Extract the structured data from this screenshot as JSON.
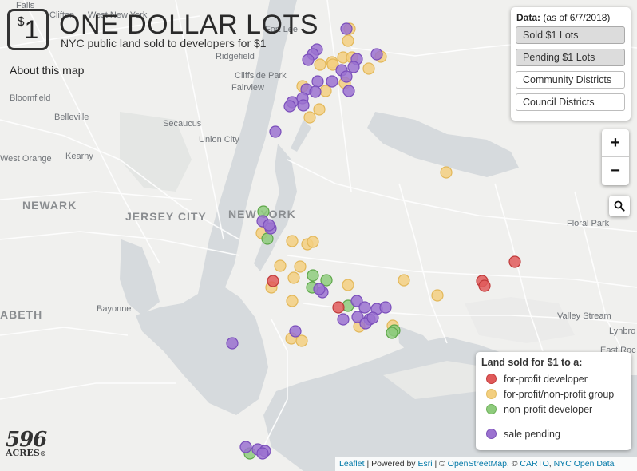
{
  "header": {
    "logo_dollar": "$",
    "logo_number": "1",
    "title": "ONE DOLLAR LOTS",
    "subtitle": "NYC public land sold to developers for $1",
    "about_link": "About this map"
  },
  "data_panel": {
    "heading_bold": "Data:",
    "heading_note": "(as of 6/7/2018)",
    "layers": [
      {
        "label": "Sold $1 Lots",
        "active": true
      },
      {
        "label": "Pending $1 Lots",
        "active": true
      },
      {
        "label": "Community Districts",
        "active": false
      },
      {
        "label": "Council Districts",
        "active": false
      }
    ]
  },
  "zoom": {
    "in_label": "+",
    "out_label": "−"
  },
  "search": {
    "icon": "magnifier-icon"
  },
  "legend": {
    "title": "Land sold for $1 to a:",
    "items": [
      {
        "label": "for-profit developer",
        "category": "for-profit",
        "color": "#e05a5a"
      },
      {
        "label": "for-profit/non-profit group",
        "category": "mixed",
        "color": "#f3cf80"
      },
      {
        "label": "non-profit developer",
        "category": "non-profit",
        "color": "#8ecb7c"
      }
    ],
    "pending": {
      "label": "sale pending",
      "category": "pending",
      "color": "#9b72d0"
    }
  },
  "brand": {
    "number": "596",
    "word": "ACRES",
    "mark": "®"
  },
  "attribution": {
    "leaflet": "Leaflet",
    "sep1": " | Powered by ",
    "esri": "Esri",
    "sep2": " | © ",
    "osm": "OpenStreetMap",
    "sep3": ", © ",
    "carto": "CARTO",
    "sep4": ", ",
    "nycod": "NYC Open Data"
  },
  "map": {
    "labels": {
      "west_new_york": "West New York",
      "fort_lee": "Fort Lee",
      "ridgefield": "Ridgefield",
      "cliffside_park": "Cliffside Park",
      "fairview": "Fairview",
      "bloomfield": "Bloomfield",
      "belleville": "Belleville",
      "secaucus": "Secaucus",
      "union_city": "Union City",
      "west_orange": "West Orange",
      "kearny": "Kearny",
      "newark": "NEWARK",
      "jersey_city": "JERSEY CITY",
      "new_york": "NEW YORK",
      "floral_park": "Floral Park",
      "bayonne": "Bayonne",
      "valley_stream": "Valley Stream",
      "lynbrook": "Lynbro",
      "east_rockaway": "East Roc",
      "elizabeth": "ABETH",
      "clifton": "Clifton",
      "falls": "Falls"
    },
    "lots": {
      "pending": [
        [
          434,
          36
        ],
        [
          397,
          62
        ],
        [
          392,
          68
        ],
        [
          386,
          75
        ],
        [
          447,
          74
        ],
        [
          428,
          88
        ],
        [
          443,
          84
        ],
        [
          416,
          102
        ],
        [
          434,
          96
        ],
        [
          437,
          114
        ],
        [
          398,
          102
        ],
        [
          384,
          112
        ],
        [
          395,
          115
        ],
        [
          379,
          123
        ],
        [
          366,
          128
        ],
        [
          363,
          133
        ],
        [
          380,
          132
        ],
        [
          345,
          165
        ],
        [
          472,
          68
        ],
        [
          329,
          277
        ],
        [
          339,
          286
        ],
        [
          337,
          282
        ],
        [
          404,
          366
        ],
        [
          400,
          362
        ],
        [
          447,
          377
        ],
        [
          457,
          385
        ],
        [
          472,
          387
        ],
        [
          483,
          385
        ],
        [
          448,
          397
        ],
        [
          463,
          400
        ],
        [
          458,
          405
        ],
        [
          467,
          398
        ],
        [
          430,
          400
        ],
        [
          370,
          415
        ],
        [
          291,
          430
        ],
        [
          308,
          560
        ],
        [
          323,
          563
        ],
        [
          332,
          565
        ],
        [
          329,
          568
        ]
      ],
      "mixed": [
        [
          438,
          36
        ],
        [
          436,
          51
        ],
        [
          401,
          81
        ],
        [
          416,
          78
        ],
        [
          430,
          72
        ],
        [
          441,
          72
        ],
        [
          432,
          104
        ],
        [
          462,
          86
        ],
        [
          477,
          71
        ],
        [
          379,
          108
        ],
        [
          408,
          114
        ],
        [
          400,
          137
        ],
        [
          388,
          147
        ],
        [
          559,
          216
        ],
        [
          328,
          292
        ],
        [
          366,
          302
        ],
        [
          385,
          306
        ],
        [
          392,
          303
        ],
        [
          351,
          333
        ],
        [
          376,
          334
        ],
        [
          368,
          348
        ],
        [
          340,
          360
        ],
        [
          436,
          357
        ],
        [
          506,
          351
        ],
        [
          548,
          370
        ],
        [
          366,
          377
        ],
        [
          450,
          409
        ],
        [
          492,
          408
        ],
        [
          365,
          424
        ],
        [
          378,
          427
        ],
        [
          417,
          81
        ]
      ],
      "non_profit": [
        [
          330,
          265
        ],
        [
          335,
          299
        ],
        [
          392,
          345
        ],
        [
          409,
          351
        ],
        [
          391,
          360
        ],
        [
          436,
          383
        ],
        [
          494,
          414
        ],
        [
          491,
          417
        ],
        [
          313,
          568
        ]
      ],
      "for_profit": [
        [
          342,
          352
        ],
        [
          424,
          385
        ],
        [
          604,
          352
        ],
        [
          607,
          358
        ],
        [
          645,
          328
        ]
      ]
    }
  }
}
